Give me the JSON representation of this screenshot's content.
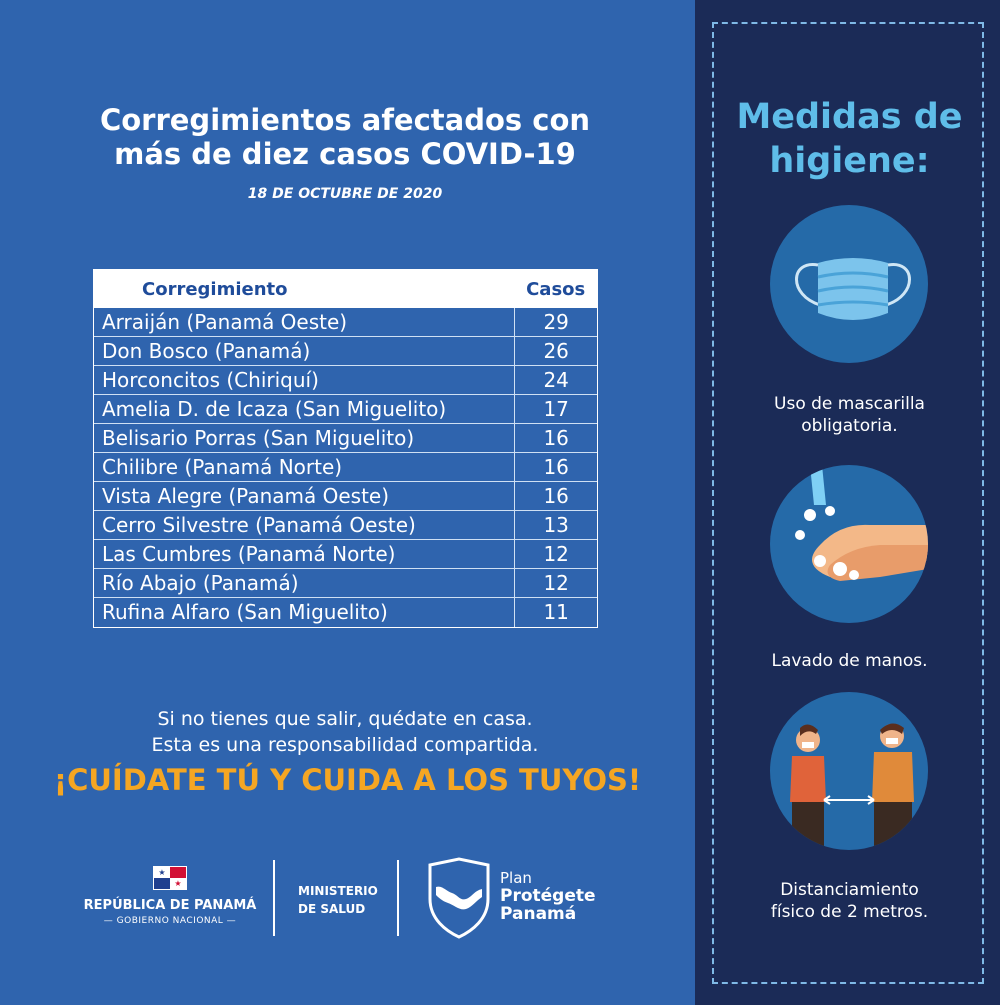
{
  "left": {
    "title_line1": "Corregimientos afectados con",
    "title_line2": "más de diez casos COVID-19",
    "date": "18  DE OCTUBRE DE 2020",
    "table": {
      "headers": [
        "Corregimiento",
        "Casos"
      ],
      "rows": [
        [
          "Arraiján (Panamá Oeste)",
          "29"
        ],
        [
          "Don Bosco (Panamá)",
          "26"
        ],
        [
          "Horconcitos (Chiriquí)",
          "24"
        ],
        [
          "Amelia D. de Icaza (San Miguelito)",
          "17"
        ],
        [
          "Belisario Porras (San Miguelito)",
          "16"
        ],
        [
          "Chilibre (Panamá Norte)",
          "16"
        ],
        [
          "Vista Alegre (Panamá Oeste)",
          "16"
        ],
        [
          "Cerro Silvestre (Panamá Oeste)",
          "13"
        ],
        [
          "Las Cumbres (Panamá Norte)",
          "12"
        ],
        [
          "Río Abajo (Panamá)",
          "12"
        ],
        [
          "Rufina Alfaro (San Miguelito)",
          "11"
        ]
      ]
    },
    "message_line1": "Si no tienes que salir, quédate en casa.",
    "message_line2": "Esta es una responsabilidad compartida.",
    "slogan": "¡CUÍDATE TÚ Y CUIDA A LOS TUYOS!"
  },
  "logos": {
    "republic_name": "REPÚBLICA DE PANAMÁ",
    "republic_sub": "— GOBIERNO NACIONAL —",
    "ministry_line1": "MINISTERIO",
    "ministry_line2": "DE SALUD",
    "plan_line1": "Plan",
    "plan_line2": "Protégete",
    "plan_line3": "Panamá"
  },
  "right": {
    "title_line1": "Medidas de",
    "title_line2": "higiene:",
    "items": [
      {
        "icon": "face-mask-icon",
        "caption_line1": "Uso de mascarilla",
        "caption_line2": "obligatoria."
      },
      {
        "icon": "hand-washing-icon",
        "caption_line1": "Lavado de manos.",
        "caption_line2": ""
      },
      {
        "icon": "social-distancing-icon",
        "caption_line1": "Distanciamiento",
        "caption_line2": "físico de 2 metros."
      }
    ]
  },
  "colors": {
    "left_bg": "#2f64ae",
    "right_bg": "#1b2b57",
    "accent_orange": "#f5a623",
    "accent_light_blue": "#5fbde9"
  }
}
